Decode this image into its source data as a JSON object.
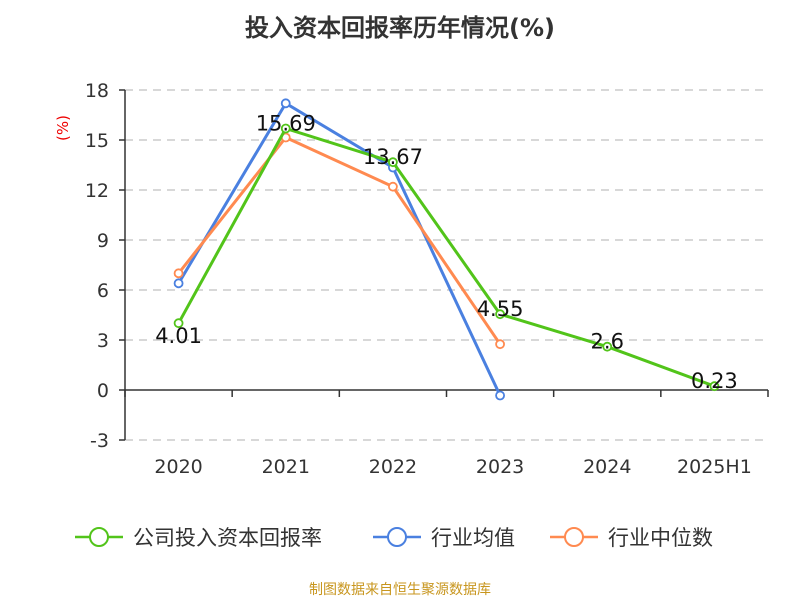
{
  "chart_data": {
    "type": "line",
    "title": "投入资本回报率历年情况(%)",
    "ylabel": "(%)",
    "xlabel": "",
    "ylim": [
      -3,
      18
    ],
    "yticks": [
      -3,
      0,
      3,
      6,
      9,
      12,
      15,
      18
    ],
    "categories": [
      "2020",
      "2021",
      "2022",
      "2023",
      "2024",
      "2025H1"
    ],
    "grid": true,
    "legend_position": "bottom",
    "series": [
      {
        "name": "公司投入资本回报率",
        "color": "#52c41a",
        "values": [
          4.01,
          15.69,
          13.67,
          4.55,
          2.6,
          0.23
        ],
        "labels": [
          "4.01",
          "15.69",
          "13.67",
          "4.55",
          "2.6",
          "0.23"
        ]
      },
      {
        "name": "行业均值",
        "color": "#4a80e0",
        "values": [
          6.4,
          17.2,
          13.35,
          -0.33,
          null,
          null
        ]
      },
      {
        "name": "行业中位数",
        "color": "#ff8a50",
        "values": [
          7.0,
          15.15,
          12.2,
          2.75,
          null,
          null
        ]
      }
    ]
  },
  "source": "制图数据来自恒生聚源数据库"
}
